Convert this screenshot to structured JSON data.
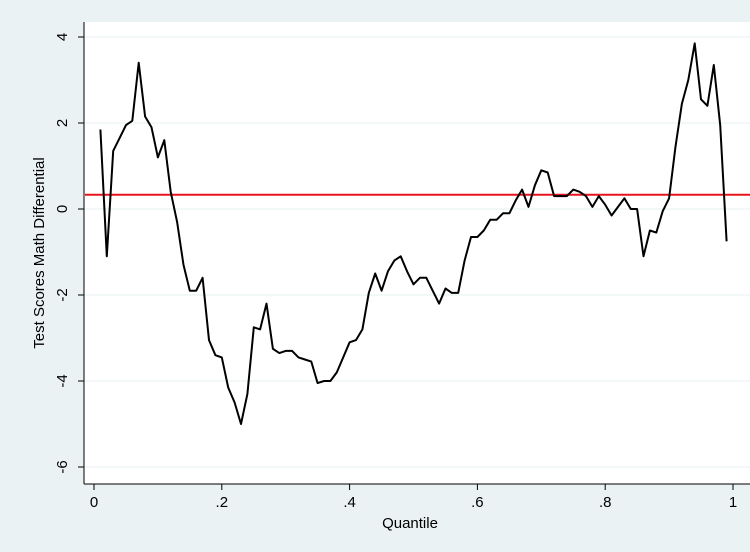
{
  "chart_data": {
    "type": "line",
    "xlabel": "Quantile",
    "ylabel": "Test Scores Math Differential",
    "xlim": [
      0,
      1
    ],
    "ylim": [
      -6,
      4
    ],
    "xticks": [
      {
        "v": 0,
        "label": "0"
      },
      {
        "v": 0.2,
        "label": ".2"
      },
      {
        "v": 0.4,
        "label": ".4"
      },
      {
        "v": 0.6,
        "label": ".6"
      },
      {
        "v": 0.8,
        "label": ".8"
      },
      {
        "v": 1,
        "label": "1"
      }
    ],
    "yticks": [
      {
        "v": -6,
        "label": "-6"
      },
      {
        "v": -4,
        "label": "-4"
      },
      {
        "v": -2,
        "label": "-2"
      },
      {
        "v": 0,
        "label": "0"
      },
      {
        "v": 2,
        "label": "2"
      },
      {
        "v": 4,
        "label": "4"
      }
    ],
    "grid": true,
    "reference_line": {
      "y": 0.33,
      "color": "#e8141c"
    },
    "series": [
      {
        "color": "#000000",
        "x": [
          0.01,
          0.02,
          0.03,
          0.04,
          0.05,
          0.06,
          0.07,
          0.08,
          0.09,
          0.1,
          0.11,
          0.12,
          0.13,
          0.14,
          0.15,
          0.16,
          0.17,
          0.18,
          0.19,
          0.2,
          0.21,
          0.22,
          0.23,
          0.24,
          0.25,
          0.26,
          0.27,
          0.28,
          0.29,
          0.3,
          0.31,
          0.32,
          0.33,
          0.34,
          0.35,
          0.36,
          0.37,
          0.38,
          0.39,
          0.4,
          0.41,
          0.42,
          0.43,
          0.44,
          0.45,
          0.46,
          0.47,
          0.48,
          0.49,
          0.5,
          0.51,
          0.52,
          0.53,
          0.54,
          0.55,
          0.56,
          0.57,
          0.58,
          0.59,
          0.6,
          0.61,
          0.62,
          0.63,
          0.64,
          0.65,
          0.66,
          0.67,
          0.68,
          0.69,
          0.7,
          0.71,
          0.72,
          0.73,
          0.74,
          0.75,
          0.76,
          0.77,
          0.78,
          0.79,
          0.8,
          0.81,
          0.82,
          0.83,
          0.84,
          0.85,
          0.86,
          0.87,
          0.88,
          0.89,
          0.9,
          0.91,
          0.92,
          0.93,
          0.94,
          0.95,
          0.96,
          0.97,
          0.98,
          0.99
        ],
        "y": [
          1.85,
          -1.1,
          1.35,
          1.65,
          1.95,
          2.05,
          3.4,
          2.15,
          1.9,
          1.2,
          1.6,
          0.4,
          -0.3,
          -1.3,
          -1.9,
          -1.9,
          -1.6,
          -3.05,
          -3.4,
          -3.45,
          -4.15,
          -4.5,
          -5.0,
          -4.3,
          -2.75,
          -2.8,
          -2.2,
          -3.25,
          -3.35,
          -3.3,
          -3.3,
          -3.45,
          -3.5,
          -3.55,
          -4.05,
          -4.0,
          -4.0,
          -3.8,
          -3.45,
          -3.1,
          -3.05,
          -2.8,
          -1.95,
          -1.5,
          -1.9,
          -1.45,
          -1.2,
          -1.1,
          -1.45,
          -1.75,
          -1.6,
          -1.6,
          -1.9,
          -2.2,
          -1.85,
          -1.95,
          -1.95,
          -1.2,
          -0.65,
          -0.65,
          -0.5,
          -0.25,
          -0.25,
          -0.1,
          -0.1,
          0.2,
          0.45,
          0.05,
          0.55,
          0.9,
          0.85,
          0.3,
          0.3,
          0.3,
          0.45,
          0.4,
          0.3,
          0.05,
          0.3,
          0.1,
          -0.15,
          0.05,
          0.25,
          0.0,
          0.0,
          -1.1,
          -0.5,
          -0.55,
          -0.05,
          0.25,
          1.45,
          2.45,
          3.0,
          3.85,
          2.55,
          2.4,
          3.35,
          1.95,
          -0.75
        ]
      }
    ]
  }
}
